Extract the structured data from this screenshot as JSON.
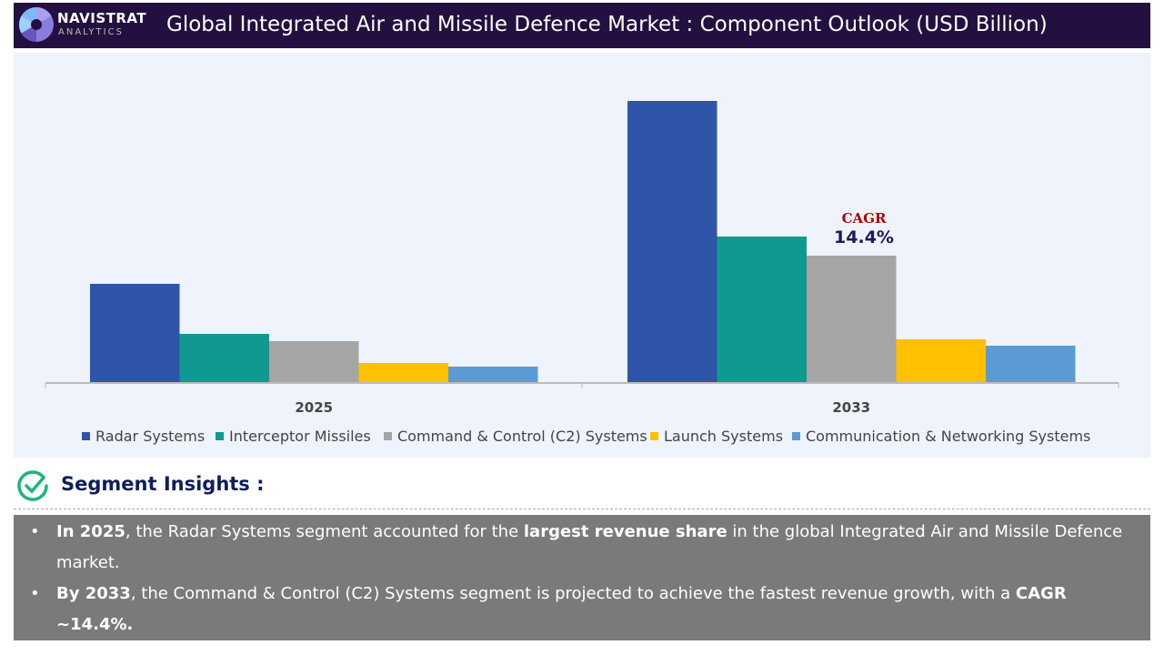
{
  "header": {
    "logo_line1": "NAVISTRAT",
    "logo_line2": "ANALYTICS",
    "title": "Global Integrated Air and Missile Defence Market : Component Outlook (USD Billion)"
  },
  "chart_data": {
    "type": "bar",
    "categories": [
      "2025",
      "2033"
    ],
    "series": [
      {
        "name": "Radar Systems",
        "color": "#2f55a8",
        "values": [
          109,
          310
        ]
      },
      {
        "name": "Interceptor Missiles",
        "color": "#0e9a90",
        "values": [
          54,
          161
        ]
      },
      {
        "name": "Command & Control (C2) Systems",
        "color": "#a5a5a5",
        "values": [
          46,
          140
        ]
      },
      {
        "name": "Launch Systems",
        "color": "#ffc000",
        "values": [
          22,
          48
        ]
      },
      {
        "name": "Communication & Networking Systems",
        "color": "#5b9bd5",
        "values": [
          18,
          41
        ]
      }
    ],
    "value_note": "relative bar heights (no value axis shown)",
    "legend": "bottom",
    "grid": false,
    "annotation": {
      "label": "CAGR",
      "value": "14.4%"
    }
  },
  "insights": {
    "title": "Segment Insights :",
    "items": [
      {
        "parts": [
          {
            "t": "In 2025",
            "b": true
          },
          {
            "t": ", the Radar Systems segment accounted for the ",
            "b": false
          },
          {
            "t": "largest revenue share",
            "b": true
          },
          {
            "t": " in the global Integrated Air and Missile Defence market.",
            "b": false
          }
        ]
      },
      {
        "parts": [
          {
            "t": "By 2033",
            "b": true
          },
          {
            "t": ", the Command & Control (C2) Systems segment is projected to achieve the fastest revenue growth, with a ",
            "b": false
          },
          {
            "t": "CAGR ~14.4%.",
            "b": true
          }
        ]
      }
    ]
  }
}
